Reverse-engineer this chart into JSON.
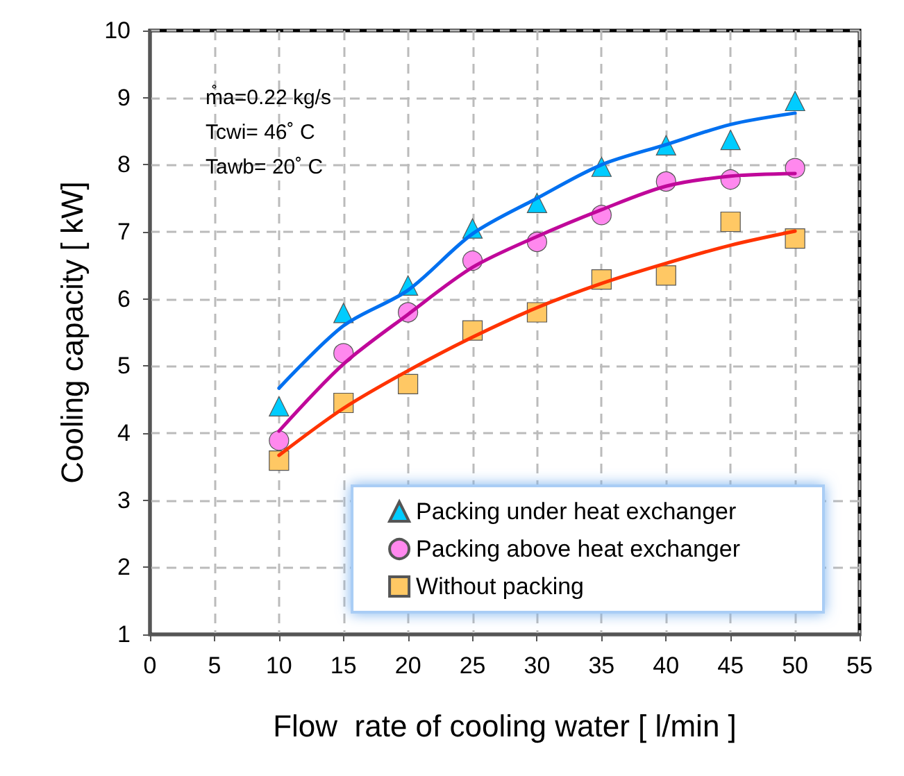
{
  "chart_data": {
    "type": "scatter",
    "xlabel": "Flow  rate of cooling water [ l/min ]",
    "ylabel": "Cooling capacity [ kW]",
    "x": [
      10,
      15,
      20,
      25,
      30,
      35,
      40,
      45,
      50
    ],
    "xlim": [
      0,
      55
    ],
    "xticks": [
      0,
      5,
      10,
      15,
      20,
      25,
      30,
      35,
      40,
      45,
      50,
      55
    ],
    "ylim": [
      1,
      10
    ],
    "yticks": [
      1,
      2,
      3,
      4,
      5,
      6,
      7,
      8,
      9,
      10
    ],
    "grid": true,
    "legend": "bottom right",
    "annotations": [
      "m̊a=0.22 kg/s",
      "Tcwi= 46˚ C",
      "Tawb= 20˚ C"
    ],
    "series": [
      {
        "name": "Packing under heat exchanger",
        "color": "#00ccff",
        "marker": "triangle",
        "values": [
          4.4,
          5.79,
          6.2,
          7.05,
          7.43,
          7.97,
          8.29,
          8.37,
          8.95
        ]
      },
      {
        "name": "Packing above heat exchanger",
        "color": "#ff88ee",
        "marker": "circle",
        "values": [
          3.89,
          5.19,
          5.8,
          6.57,
          6.85,
          7.25,
          7.75,
          7.78,
          7.95
        ]
      },
      {
        "name": "Without packing",
        "color": "#ffc864",
        "marker": "square",
        "values": [
          3.59,
          4.45,
          4.73,
          5.53,
          5.8,
          6.29,
          6.35,
          7.15,
          6.9
        ]
      },
      {
        "type": "line",
        "color": "#0070f0",
        "marker": "none",
        "x": [
          10,
          15,
          20,
          25,
          30,
          35,
          40,
          45,
          50
        ],
        "values": [
          4.67,
          5.6,
          6.13,
          6.97,
          7.5,
          8.0,
          8.3,
          8.6,
          8.77
        ]
      },
      {
        "type": "line",
        "color": "#c0089a",
        "marker": "none",
        "x": [
          10,
          15,
          20,
          25,
          30,
          35,
          40,
          45,
          50
        ],
        "values": [
          4.03,
          5.03,
          5.77,
          6.47,
          6.93,
          7.33,
          7.68,
          7.83,
          7.87
        ]
      },
      {
        "type": "line",
        "color": "#ff3300",
        "marker": "none",
        "x": [
          10,
          15,
          20,
          25,
          30,
          35,
          40,
          45,
          50
        ],
        "values": [
          3.67,
          4.37,
          4.93,
          5.43,
          5.87,
          6.23,
          6.53,
          6.8,
          7.01
        ]
      }
    ]
  }
}
